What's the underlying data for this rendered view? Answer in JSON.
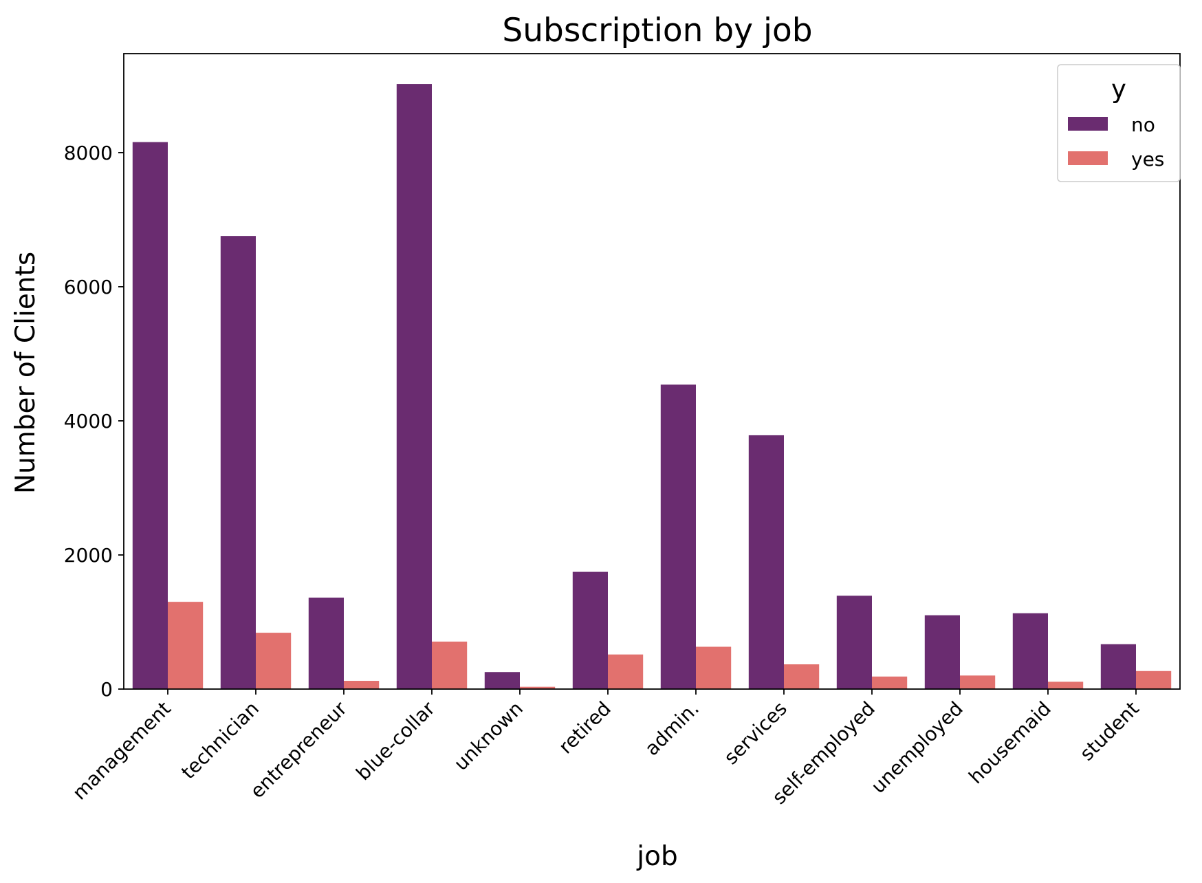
{
  "chart_data": {
    "type": "bar",
    "title": "Subscription by job",
    "xlabel": "job",
    "ylabel": "Number of Clients",
    "categories": [
      "management",
      "technician",
      "entrepreneur",
      "blue-collar",
      "unknown",
      "retired",
      "admin.",
      "services",
      "self-employed",
      "unemployed",
      "housemaid",
      "student"
    ],
    "series": [
      {
        "name": "no",
        "color": "#6a2c70",
        "values": [
          8157,
          6757,
          1364,
          9024,
          254,
          1748,
          4540,
          3785,
          1392,
          1101,
          1131,
          669
        ]
      },
      {
        "name": "yes",
        "color": "#e2716e",
        "values": [
          1301,
          840,
          123,
          708,
          34,
          516,
          631,
          369,
          187,
          202,
          109,
          269
        ]
      }
    ],
    "yticks": [
      0,
      2000,
      4000,
      6000,
      8000
    ],
    "ylim": [
      0,
      9476
    ],
    "legend": {
      "title": "y",
      "placement": "top-right"
    },
    "grid": false
  }
}
